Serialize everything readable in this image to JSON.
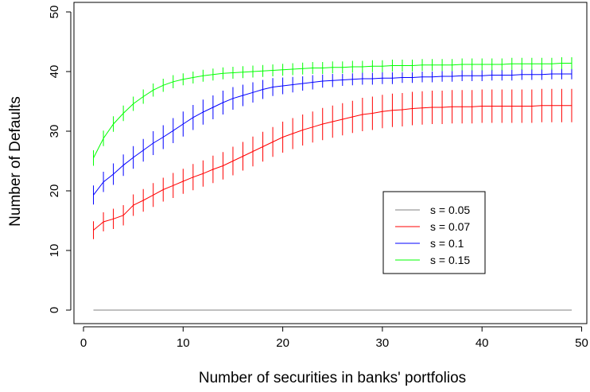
{
  "chart_data": {
    "type": "line",
    "title": "",
    "xlabel": "Number of securities in banks' portfolios",
    "ylabel": "Number of Defaults",
    "xlim": [
      0,
      50
    ],
    "ylim": [
      0,
      50
    ],
    "x_ticks": [
      0,
      10,
      20,
      30,
      40,
      50
    ],
    "y_ticks": [
      0,
      10,
      20,
      30,
      40,
      50
    ],
    "grid": false,
    "legend_position": "center-right",
    "error_bars": true,
    "x": [
      1,
      2,
      3,
      4,
      5,
      6,
      7,
      8,
      9,
      10,
      11,
      12,
      13,
      14,
      15,
      16,
      17,
      18,
      19,
      20,
      21,
      22,
      23,
      24,
      25,
      26,
      27,
      28,
      29,
      30,
      31,
      32,
      33,
      34,
      35,
      36,
      37,
      38,
      39,
      40,
      41,
      42,
      43,
      44,
      45,
      46,
      47,
      48,
      49
    ],
    "series": [
      {
        "name": "s = 0.05",
        "color": "#808080",
        "values": [
          0,
          0,
          0,
          0,
          0,
          0,
          0,
          0,
          0,
          0,
          0,
          0,
          0,
          0,
          0,
          0,
          0,
          0,
          0,
          0,
          0,
          0,
          0,
          0,
          0,
          0,
          0,
          0,
          0,
          0,
          0,
          0,
          0,
          0,
          0,
          0,
          0,
          0,
          0,
          0,
          0,
          0,
          0,
          0,
          0,
          0,
          0,
          0,
          0
        ],
        "error": [
          0,
          0,
          0,
          0,
          0,
          0,
          0,
          0,
          0,
          0,
          0,
          0,
          0,
          0,
          0,
          0,
          0,
          0,
          0,
          0,
          0,
          0,
          0,
          0,
          0,
          0,
          0,
          0,
          0,
          0,
          0,
          0,
          0,
          0,
          0,
          0,
          0,
          0,
          0,
          0,
          0,
          0,
          0,
          0,
          0,
          0,
          0,
          0,
          0
        ]
      },
      {
        "name": "s = 0.07",
        "color": "#ff0000",
        "values": [
          13.4,
          14.8,
          15.3,
          15.9,
          17.6,
          18.4,
          19.3,
          20.2,
          20.9,
          21.6,
          22.3,
          22.9,
          23.6,
          24.2,
          25.0,
          25.8,
          26.6,
          27.4,
          28.2,
          29.0,
          29.6,
          30.2,
          30.7,
          31.2,
          31.6,
          32.0,
          32.4,
          32.8,
          33.0,
          33.3,
          33.5,
          33.6,
          33.8,
          33.9,
          34.0,
          34.0,
          34.1,
          34.1,
          34.1,
          34.2,
          34.2,
          34.2,
          34.2,
          34.2,
          34.2,
          34.3,
          34.3,
          34.3,
          34.3
        ],
        "error": [
          1.5,
          1.6,
          1.7,
          1.7,
          1.8,
          1.9,
          2.0,
          2.0,
          2.1,
          2.1,
          2.2,
          2.2,
          2.3,
          2.3,
          2.4,
          2.4,
          2.5,
          2.5,
          2.5,
          2.6,
          2.6,
          2.6,
          2.6,
          2.7,
          2.7,
          2.7,
          2.7,
          2.8,
          2.8,
          2.8,
          2.8,
          2.8,
          2.8,
          2.8,
          2.8,
          2.8,
          2.8,
          2.8,
          2.8,
          2.8,
          2.8,
          2.8,
          2.8,
          2.8,
          2.8,
          2.8,
          2.8,
          2.8,
          2.8
        ]
      },
      {
        "name": "s = 0.1",
        "color": "#0000ff",
        "values": [
          19.3,
          21.5,
          22.8,
          24.3,
          25.6,
          26.8,
          28.0,
          29.0,
          30.1,
          31.2,
          32.3,
          33.2,
          34.0,
          34.8,
          35.5,
          36.0,
          36.5,
          37.0,
          37.4,
          37.6,
          37.8,
          38.0,
          38.2,
          38.4,
          38.5,
          38.6,
          38.7,
          38.8,
          38.8,
          38.9,
          38.9,
          39.0,
          39.0,
          39.1,
          39.1,
          39.2,
          39.2,
          39.3,
          39.3,
          39.3,
          39.4,
          39.4,
          39.4,
          39.5,
          39.5,
          39.5,
          39.6,
          39.6,
          39.6
        ],
        "error": [
          1.6,
          1.7,
          1.8,
          1.8,
          1.9,
          1.9,
          2.0,
          2.0,
          2.1,
          2.1,
          2.1,
          2.1,
          2.0,
          2.0,
          1.9,
          1.8,
          1.7,
          1.6,
          1.5,
          1.4,
          1.3,
          1.2,
          1.2,
          1.1,
          1.1,
          1.0,
          1.0,
          1.0,
          1.0,
          1.0,
          1.0,
          0.9,
          0.9,
          0.9,
          0.9,
          0.9,
          0.9,
          0.9,
          0.9,
          0.9,
          0.9,
          0.9,
          0.9,
          0.9,
          0.9,
          0.9,
          0.9,
          0.9,
          0.9
        ]
      },
      {
        "name": "s = 0.15",
        "color": "#00ff00",
        "values": [
          25.5,
          28.8,
          31.2,
          33.0,
          34.6,
          35.8,
          36.9,
          37.7,
          38.3,
          38.7,
          39.0,
          39.3,
          39.5,
          39.7,
          39.8,
          39.9,
          40.0,
          40.1,
          40.2,
          40.3,
          40.4,
          40.5,
          40.6,
          40.6,
          40.7,
          40.7,
          40.8,
          40.8,
          40.9,
          40.9,
          41.0,
          41.0,
          41.0,
          41.1,
          41.1,
          41.1,
          41.1,
          41.2,
          41.2,
          41.2,
          41.2,
          41.2,
          41.3,
          41.3,
          41.3,
          41.3,
          41.3,
          41.4,
          41.4
        ],
        "error": [
          1.3,
          1.3,
          1.3,
          1.3,
          1.2,
          1.2,
          1.1,
          1.1,
          1.1,
          1.0,
          1.0,
          1.0,
          1.0,
          1.0,
          1.0,
          1.0,
          1.0,
          1.0,
          1.0,
          1.0,
          1.0,
          1.0,
          1.0,
          1.0,
          1.0,
          1.0,
          1.0,
          1.0,
          1.0,
          1.0,
          1.0,
          1.0,
          1.0,
          1.0,
          1.0,
          1.0,
          1.0,
          1.0,
          1.0,
          1.0,
          1.0,
          1.0,
          1.0,
          1.0,
          1.0,
          1.0,
          1.0,
          1.0,
          1.0
        ]
      }
    ]
  }
}
